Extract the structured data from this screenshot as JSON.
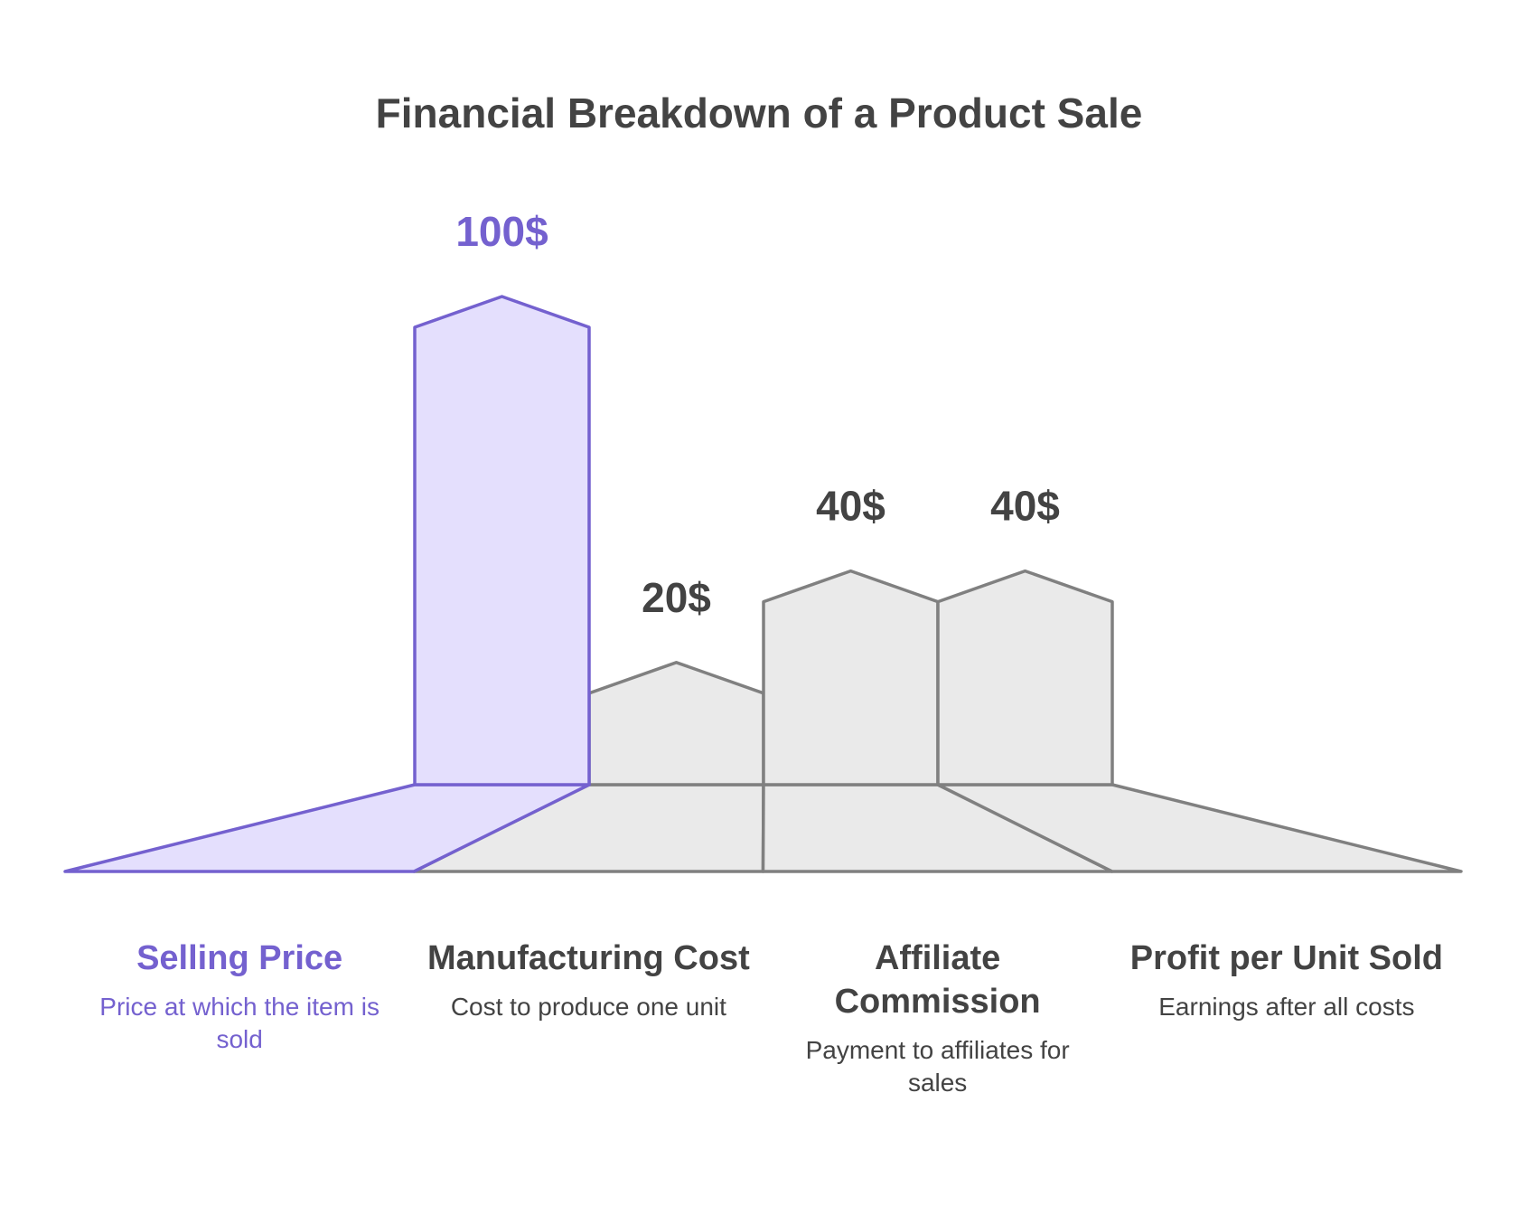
{
  "chart_data": {
    "type": "bar",
    "title": "Financial Breakdown of a Product Sale",
    "unit": "$",
    "categories": [
      "Selling Price",
      "Manufacturing Cost",
      "Affiliate Commission",
      "Profit per Unit Sold"
    ],
    "values": [
      100,
      20,
      40,
      40
    ],
    "value_labels": [
      "100$",
      "20$",
      "40$",
      "40$"
    ],
    "descriptions": [
      "Price at which the item is sold",
      "Cost to produce one unit",
      "Payment to affiliates for sales",
      "Earnings after all costs"
    ],
    "highlight_index": 0,
    "colors": {
      "highlight_fill": "#E4DFFD",
      "highlight_stroke": "#7461CF",
      "default_fill": "#EAEAEA",
      "default_stroke": "#808080",
      "text_dark": "#434343",
      "text_highlight": "#7461CF"
    },
    "ylim": [
      0,
      100
    ],
    "grid": false,
    "legend": "none"
  }
}
